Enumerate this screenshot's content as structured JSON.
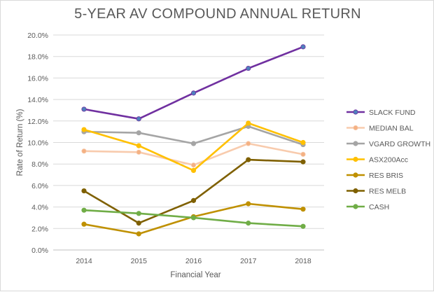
{
  "chart_data": {
    "type": "line",
    "title": "5-YEAR AV COMPOUND ANNUAL RETURN",
    "xlabel": "Financial Year",
    "ylabel": "Rate of Return (%)",
    "ylim": [
      0,
      20
    ],
    "y_step": 2,
    "y_ticks": [
      "0.0%",
      "2.0%",
      "4.0%",
      "6.0%",
      "8.0%",
      "10.0%",
      "12.0%",
      "14.0%",
      "16.0%",
      "18.0%",
      "20.0%"
    ],
    "grid": true,
    "legend_position": "right",
    "categories": [
      "2014",
      "2015",
      "2016",
      "2017",
      "2018"
    ],
    "series": [
      {
        "name": "SLACK FUND",
        "color": "#7030a0",
        "marker": "#4f81bd",
        "values": [
          13.1,
          12.2,
          14.6,
          16.9,
          18.9
        ]
      },
      {
        "name": "MEDIAN BAL",
        "color": "#f8cbad",
        "marker": "#f4b183",
        "values": [
          9.2,
          9.1,
          7.9,
          9.9,
          8.9
        ]
      },
      {
        "name": "VGARD GROWTH",
        "color": "#a5a5a5",
        "marker": "#a5a5a5",
        "values": [
          11.0,
          10.9,
          9.9,
          11.5,
          9.8
        ]
      },
      {
        "name": "ASX200Acc",
        "color": "#ffc000",
        "marker": "#ffc000",
        "values": [
          11.2,
          9.7,
          7.4,
          11.8,
          10.0
        ]
      },
      {
        "name": "RES BRIS",
        "color": "#bf9000",
        "marker": "#bf9000",
        "values": [
          2.4,
          1.5,
          3.1,
          4.3,
          3.8
        ]
      },
      {
        "name": "RES MELB",
        "color": "#7f6000",
        "marker": "#7f6000",
        "values": [
          5.5,
          2.5,
          4.6,
          8.4,
          8.2
        ]
      },
      {
        "name": "CASH",
        "color": "#70ad47",
        "marker": "#70ad47",
        "values": [
          3.7,
          3.4,
          3.0,
          2.5,
          2.2
        ]
      }
    ]
  }
}
